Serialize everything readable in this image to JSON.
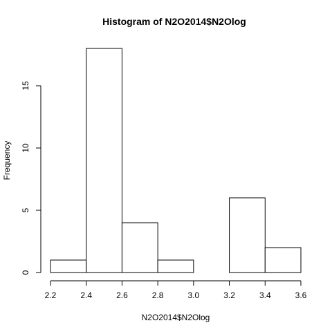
{
  "chart_data": {
    "type": "bar",
    "title": "Histogram of N2O2014$N2Olog",
    "xlabel": "N2O2014$N2Olog",
    "ylabel": "Frequency",
    "bins": [
      {
        "from": 2.2,
        "to": 2.4,
        "count": 1
      },
      {
        "from": 2.4,
        "to": 2.6,
        "count": 18
      },
      {
        "from": 2.6,
        "to": 2.8,
        "count": 4
      },
      {
        "from": 2.8,
        "to": 3.0,
        "count": 1
      },
      {
        "from": 3.0,
        "to": 3.2,
        "count": 0
      },
      {
        "from": 3.2,
        "to": 3.4,
        "count": 6
      },
      {
        "from": 3.4,
        "to": 3.6,
        "count": 2
      }
    ],
    "xlim": [
      2.2,
      3.6
    ],
    "ylim": [
      0,
      18
    ],
    "x_ticks": [
      "2.2",
      "2.4",
      "2.6",
      "2.8",
      "3.0",
      "3.2",
      "3.4",
      "3.6"
    ],
    "y_ticks": [
      "0",
      "5",
      "10",
      "15"
    ],
    "grid": false,
    "legend": "none",
    "bar_fill": "#ffffff",
    "bar_stroke": "#000000"
  }
}
